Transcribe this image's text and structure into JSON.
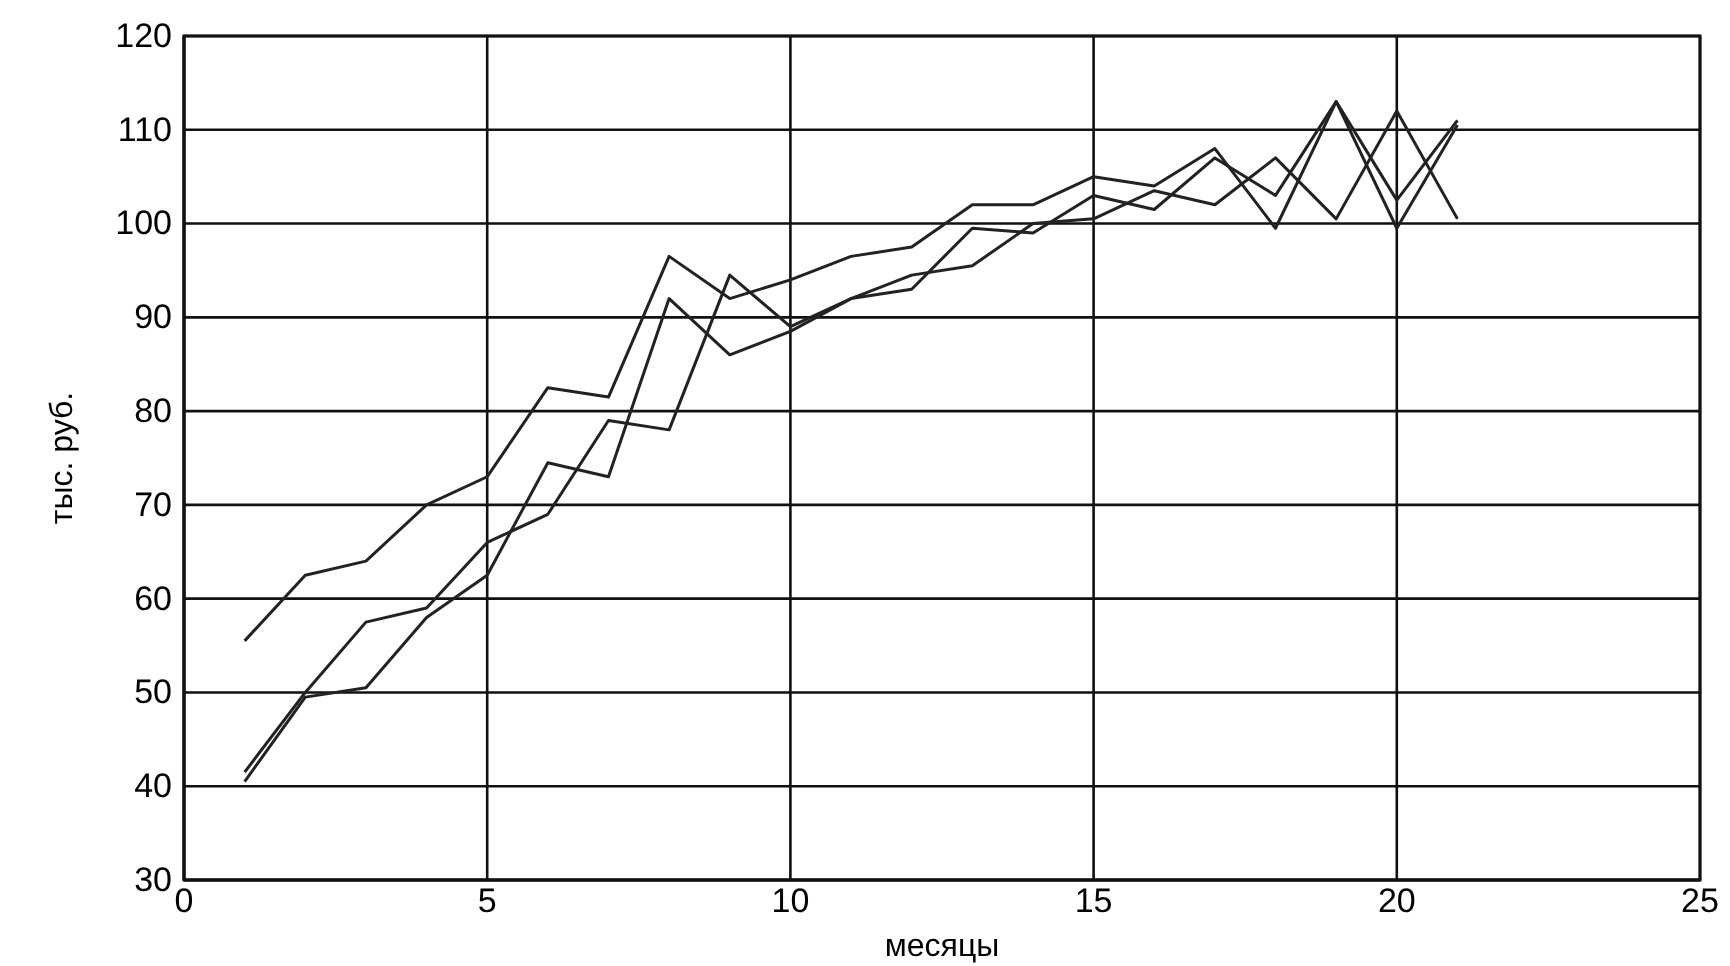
{
  "chart_data": {
    "type": "line",
    "xlabel": "месяцы",
    "ylabel": "тыс. руб.",
    "x": [
      1,
      2,
      3,
      4,
      5,
      6,
      7,
      8,
      9,
      10,
      11,
      12,
      13,
      14,
      15,
      16,
      17,
      18,
      19,
      20,
      21
    ],
    "series": [
      {
        "color": "#222222",
        "values": [
          55.5,
          62.5,
          64,
          70,
          73,
          82.5,
          81.5,
          96.5,
          92,
          94,
          96.5,
          97.5,
          102,
          102,
          105,
          104,
          108,
          99.5,
          113,
          102.5,
          111
        ]
      },
      {
        "color": "#222222",
        "values": [
          41.5,
          50,
          57.5,
          59,
          66,
          69,
          79,
          78,
          94.5,
          89,
          92,
          93,
          99.5,
          99,
          103,
          101.5,
          107,
          103,
          113,
          99.5,
          110.5
        ]
      },
      {
        "color": "#222222",
        "values": [
          40.5,
          49.5,
          50.5,
          58,
          62.5,
          74.5,
          73,
          92,
          86,
          88.5,
          92,
          94.5,
          95.5,
          100,
          100.5,
          103.5,
          102,
          107,
          100.5,
          112,
          100.5
        ]
      }
    ],
    "xlim": [
      0,
      25
    ],
    "xticks": [
      0,
      5,
      10,
      15,
      20,
      25
    ],
    "ylim": [
      30,
      120
    ],
    "yticks": [
      30,
      40,
      50,
      60,
      70,
      80,
      90,
      100,
      110,
      120
    ],
    "grid": true,
    "line_style": "solid",
    "marker": "none"
  }
}
